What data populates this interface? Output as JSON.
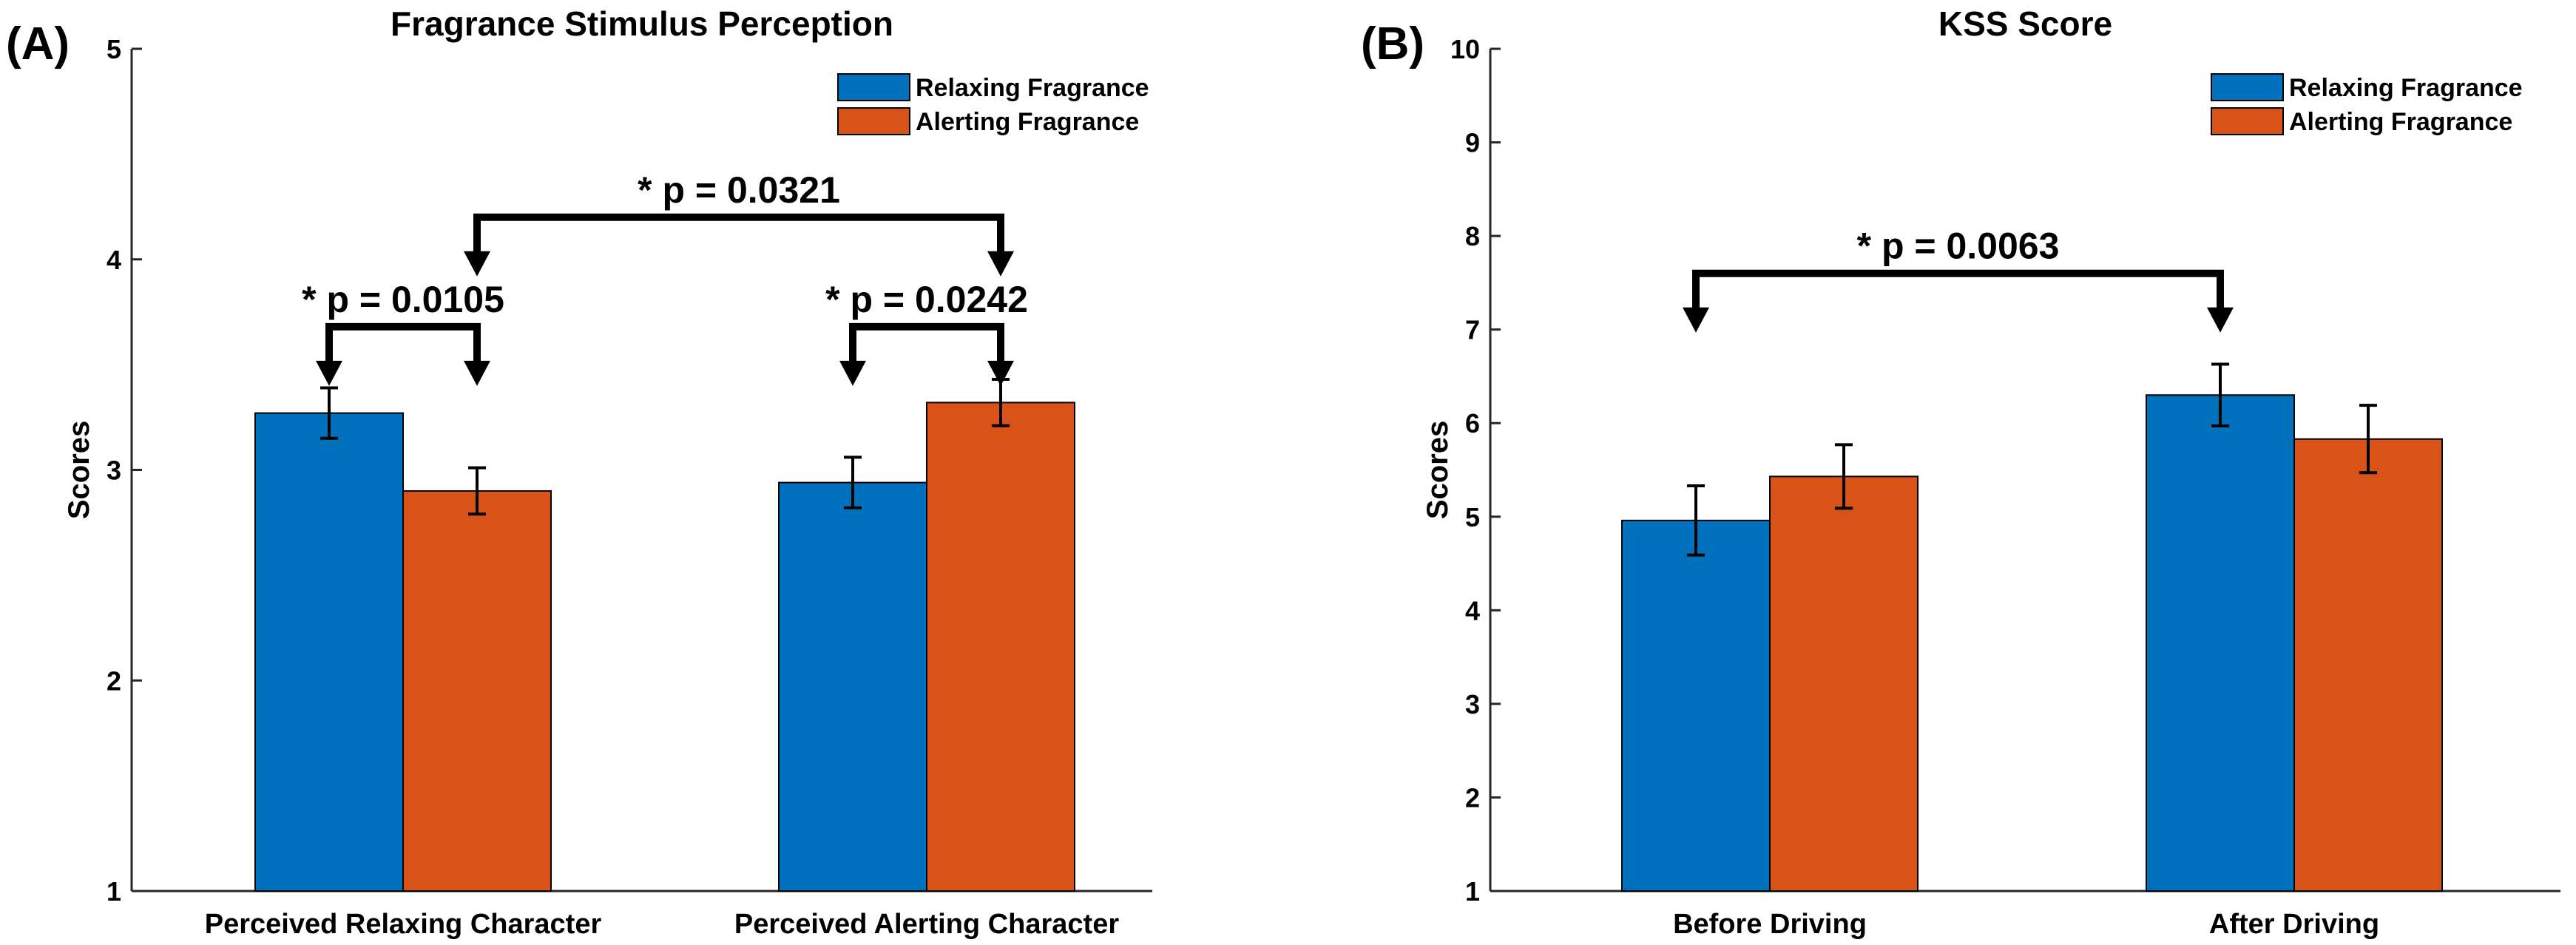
{
  "colors": {
    "relaxing": "#0072BD",
    "alerting": "#D95319"
  },
  "chart_data": [
    {
      "type": "bar",
      "panel_label": "(A)",
      "title": "Fragrance Stimulus Perception",
      "xlabel": "",
      "ylabel": "Scores",
      "ylim": [
        1,
        5
      ],
      "yticks": [
        "1",
        "2",
        "3",
        "4",
        "5"
      ],
      "categories": [
        "Perceived Relaxing Character",
        "Perceived Alerting Character"
      ],
      "series": [
        {
          "name": "Relaxing Fragrance",
          "values": [
            3.27,
            2.94
          ],
          "errors": [
            0.12,
            0.12
          ]
        },
        {
          "name": "Alerting Fragrance",
          "values": [
            2.9,
            3.32
          ],
          "errors": [
            0.11,
            0.11
          ]
        }
      ],
      "legend_position": "top-right",
      "annotations": [
        {
          "text": "* p = 0.0105",
          "from": [
            0,
            0
          ],
          "to": [
            0,
            1
          ],
          "y": 3.68
        },
        {
          "text": "* p = 0.0242",
          "from": [
            1,
            0
          ],
          "to": [
            1,
            1
          ],
          "y": 3.68
        },
        {
          "text": "* p = 0.0321",
          "from": [
            0,
            1
          ],
          "to": [
            1,
            1
          ],
          "y": 4.2
        }
      ]
    },
    {
      "type": "bar",
      "panel_label": "(B)",
      "title": "KSS Score",
      "xlabel": "",
      "ylabel": "Scores",
      "ylim": [
        1,
        10
      ],
      "yticks": [
        "1",
        "2",
        "3",
        "4",
        "5",
        "6",
        "7",
        "8",
        "9",
        "10"
      ],
      "categories": [
        "Before Driving",
        "After Driving"
      ],
      "series": [
        {
          "name": "Relaxing Fragrance",
          "values": [
            4.96,
            6.3
          ],
          "errors": [
            0.37,
            0.33
          ]
        },
        {
          "name": "Alerting Fragrance",
          "values": [
            5.43,
            5.83
          ],
          "errors": [
            0.34,
            0.36
          ]
        }
      ],
      "legend_position": "top-right",
      "annotations": [
        {
          "text": "* p = 0.0063",
          "from": [
            0,
            0
          ],
          "to": [
            1,
            0
          ],
          "y": 7.6
        }
      ]
    }
  ]
}
